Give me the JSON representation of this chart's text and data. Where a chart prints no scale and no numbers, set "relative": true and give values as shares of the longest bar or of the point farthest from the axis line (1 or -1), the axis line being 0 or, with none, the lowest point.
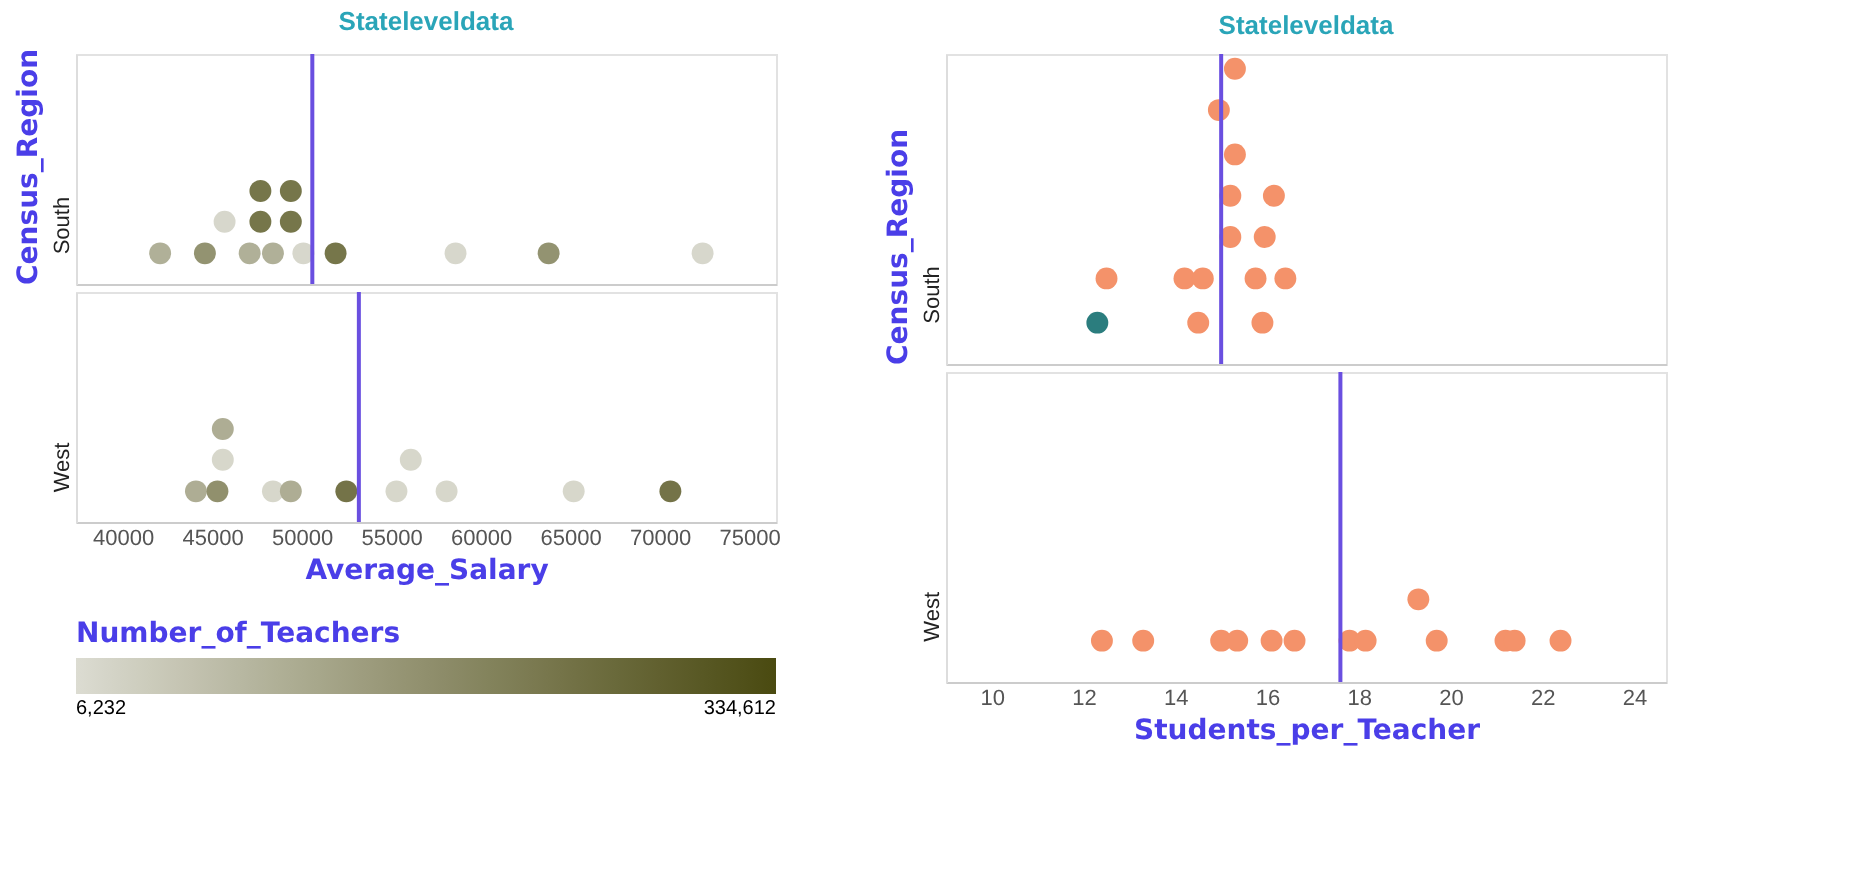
{
  "chart_data": [
    {
      "type": "scatter",
      "title": "Stateleveldata",
      "ylabel": "Census_Region",
      "y_categories": [
        "South"
      ],
      "xlim": [
        37400,
        76500
      ],
      "xticks": [
        40000,
        45000,
        50000,
        55000,
        60000,
        65000,
        70000,
        75000
      ],
      "tick_labels": "y",
      "marker": "circle",
      "grid": false,
      "relative": true,
      "series": [
        {
          "x": [
            42100,
            44600,
            47100,
            48400,
            50100,
            51900,
            58600,
            63800,
            72400,
            45700,
            47700,
            49400,
            47700,
            49400
          ],
          "values": [
            0.33,
            0.33,
            0.33,
            0.33,
            0.33,
            0.33,
            0.33,
            0.33,
            0.33,
            0.67,
            0.67,
            0.67,
            1,
            1
          ],
          "colors": [
            "#b0b098",
            "#939371",
            "#b0b098",
            "#b0b098",
            "#d7d7cc",
            "#76764a",
            "#d7d7cc",
            "#939371",
            "#d7d7cc",
            "#d7d7cc",
            "#76764a",
            "#76764a",
            "#76764a",
            "#76764a"
          ]
        }
      ],
      "ref_lines": [
        {
          "axis": "x",
          "value": 50600,
          "color": "#6a4fe0"
        }
      ]
    },
    {
      "type": "scatter",
      "xlabel": "Average_Salary",
      "y_categories": [
        "West"
      ],
      "xlim": [
        37400,
        76500
      ],
      "xticks": [
        40000,
        45000,
        50000,
        55000,
        60000,
        65000,
        70000,
        75000
      ],
      "marker": "circle",
      "grid": false,
      "clabel": "Number_of_Teachers",
      "clim": [
        6232,
        334612
      ],
      "cticks": [
        {
          "value": 6232,
          "label": "6,232"
        },
        {
          "value": 334612,
          "label": "334,612"
        }
      ],
      "relative": true,
      "series": [
        {
          "x": [
            44100,
            45300,
            48400,
            49400,
            52500,
            55300,
            58100,
            65200,
            70600,
            45600,
            56100,
            45600
          ],
          "values": [
            0.33,
            0.33,
            0.33,
            0.33,
            0.33,
            0.33,
            0.33,
            0.33,
            0.33,
            0.67,
            0.67,
            1
          ],
          "cvalues": [
            105000,
            170000,
            16500,
            105000,
            236000,
            16500,
            16500,
            16500,
            236000,
            16500,
            16500,
            105000
          ]
        }
      ],
      "ref_lines": [
        {
          "axis": "x",
          "value": 53200,
          "color": "#6a4fe0"
        }
      ]
    },
    {
      "type": "scatter",
      "title": "Stateleveldata",
      "ylabel": "Census_Region",
      "y_categories": [
        "South"
      ],
      "xlim": [
        9,
        24.7
      ],
      "xticks": [
        10,
        12,
        14,
        16,
        18,
        20,
        22,
        24
      ],
      "tick_labels": "y",
      "marker": "circle",
      "grid": false,
      "relative": true,
      "series": [
        {
          "x": [
            12.3,
            14.5,
            15.9,
            12.5,
            14.2,
            14.6,
            15.75,
            16.4,
            15.2,
            15.95,
            15.2,
            16.15,
            15.3,
            14.95,
            15.3
          ],
          "values": [
            0.14,
            0.14,
            0.14,
            0.29,
            0.29,
            0.29,
            0.29,
            0.29,
            0.43,
            0.43,
            0.57,
            0.57,
            0.71,
            0.86,
            1
          ],
          "colors": [
            "#2b7d7e",
            "#f4926a",
            "#f4926a",
            "#f4926a",
            "#f4926a",
            "#f4926a",
            "#f4926a",
            "#f4926a",
            "#f4926a",
            "#f4926a",
            "#f4926a",
            "#f4926a",
            "#f4926a",
            "#f4926a",
            "#f4926a"
          ]
        }
      ],
      "ref_lines": [
        {
          "axis": "x",
          "value": 15.0,
          "color": "#6a4fe0"
        }
      ]
    },
    {
      "type": "scatter",
      "xlabel": "Students_per_Teacher",
      "y_categories": [
        "West"
      ],
      "xlim": [
        9,
        24.7
      ],
      "xticks": [
        10,
        12,
        14,
        16,
        18,
        20,
        22,
        24
      ],
      "marker": "circle",
      "grid": false,
      "relative": true,
      "series": [
        {
          "x": [
            12.4,
            13.3,
            15.0,
            15.35,
            16.1,
            16.6,
            17.8,
            18.15,
            19.7,
            21.2,
            21.4,
            22.4,
            19.3
          ],
          "values": [
            0.5,
            0.5,
            0.5,
            0.5,
            0.5,
            0.5,
            0.5,
            0.5,
            0.5,
            0.5,
            0.5,
            0.5,
            1
          ],
          "colors": [
            "#f4926a",
            "#f4926a",
            "#f4926a",
            "#f4926a",
            "#f4926a",
            "#f4926a",
            "#f4926a",
            "#f4926a",
            "#f4926a",
            "#f4926a",
            "#f4926a",
            "#f4926a",
            "#f4926a"
          ]
        }
      ],
      "ref_lines": [
        {
          "axis": "x",
          "value": 17.6,
          "color": "#6a4fe0"
        }
      ]
    }
  ]
}
